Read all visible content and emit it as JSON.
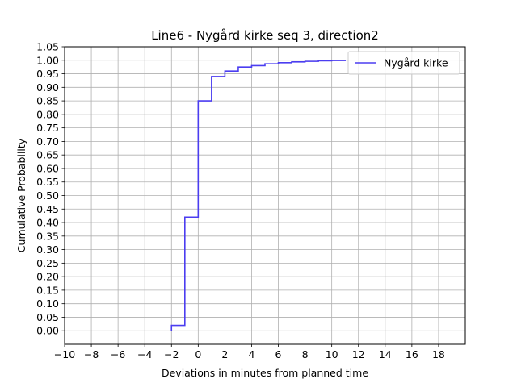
{
  "chart_data": {
    "type": "line",
    "title": "Line6 - Nygård kirke seq 3, direction2",
    "xlabel": "Deviations in minutes from planned time",
    "ylabel": "Cumulative Probability",
    "xlim": [
      -10,
      20
    ],
    "ylim": [
      -0.05,
      1.05
    ],
    "xticks": [
      -10,
      -8,
      -6,
      -4,
      -2,
      0,
      2,
      4,
      6,
      8,
      10,
      12,
      14,
      16,
      18
    ],
    "yticks": [
      0.0,
      0.05,
      0.1,
      0.15,
      0.2,
      0.25,
      0.3,
      0.35,
      0.4,
      0.45,
      0.5,
      0.55,
      0.6,
      0.65,
      0.7,
      0.75,
      0.8,
      0.85,
      0.9,
      0.95,
      1.0,
      1.05
    ],
    "xtick_labels": [
      "−10",
      "−8",
      "−6",
      "−4",
      "−2",
      "0",
      "2",
      "4",
      "6",
      "8",
      "10",
      "12",
      "14",
      "16",
      "18"
    ],
    "ytick_labels": [
      "0.00",
      "0.05",
      "0.10",
      "0.15",
      "0.20",
      "0.25",
      "0.30",
      "0.35",
      "0.40",
      "0.45",
      "0.50",
      "0.55",
      "0.60",
      "0.65",
      "0.70",
      "0.75",
      "0.80",
      "0.85",
      "0.90",
      "0.95",
      "1.00",
      "1.05"
    ],
    "grid": true,
    "legend_position": "top-right",
    "series": [
      {
        "name": "Nygård kirke",
        "color": "#4b3df0",
        "step": "post",
        "x": [
          -2,
          -2,
          -1,
          0,
          1,
          2,
          3,
          4,
          5,
          6,
          7,
          8,
          9,
          10,
          11
        ],
        "y": [
          0.0,
          0.02,
          0.42,
          0.85,
          0.94,
          0.96,
          0.975,
          0.98,
          0.987,
          0.991,
          0.994,
          0.996,
          0.998,
          0.999,
          1.0
        ]
      }
    ]
  }
}
